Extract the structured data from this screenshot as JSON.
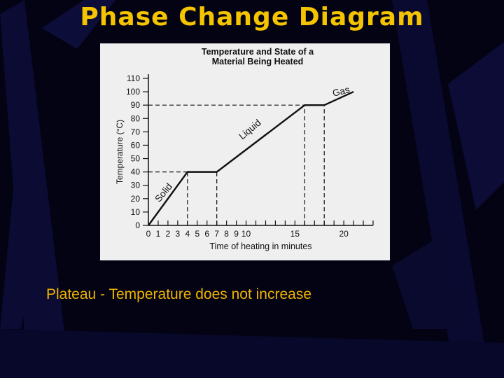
{
  "slide": {
    "title": "Phase Change Diagram",
    "caption": "Plateau - Temperature does not increase",
    "colors": {
      "title": "#f5c400",
      "caption": "#f0b400",
      "background": "#030314",
      "panel": "#efefef"
    }
  },
  "chart_data": {
    "type": "line",
    "title_lines": [
      "Temperature and State of a",
      "Material Being Heated"
    ],
    "xlabel": "Time of heating in minutes",
    "ylabel": "Temperature (°C)",
    "xlim": [
      0,
      23
    ],
    "ylim": [
      0,
      110
    ],
    "x_ticks": [
      0,
      1,
      2,
      3,
      4,
      5,
      6,
      7,
      8,
      9,
      10,
      11,
      12,
      13,
      14,
      15,
      16,
      17,
      18,
      19,
      20,
      21,
      22,
      23
    ],
    "x_tick_labels": [
      {
        "x": 0,
        "label": "0"
      },
      {
        "x": 1,
        "label": "1"
      },
      {
        "x": 2,
        "label": "2"
      },
      {
        "x": 3,
        "label": "3"
      },
      {
        "x": 4,
        "label": "4"
      },
      {
        "x": 5,
        "label": "5"
      },
      {
        "x": 6,
        "label": "6"
      },
      {
        "x": 7,
        "label": "7"
      },
      {
        "x": 8,
        "label": "8"
      },
      {
        "x": 9,
        "label": "9"
      },
      {
        "x": 10,
        "label": "10"
      },
      {
        "x": 15,
        "label": "15"
      },
      {
        "x": 20,
        "label": "20"
      }
    ],
    "y_ticks": [
      0,
      10,
      20,
      30,
      40,
      50,
      60,
      70,
      80,
      90,
      100,
      110
    ],
    "series": [
      {
        "x": [
          0,
          4,
          7,
          16,
          18,
          21
        ],
        "y": [
          0,
          40,
          40,
          90,
          90,
          100
        ]
      }
    ],
    "reference_lines": {
      "horizontal": [
        {
          "y": 40,
          "x_from": 0,
          "x_to": 4
        },
        {
          "y": 90,
          "x_from": 0,
          "x_to": 16
        }
      ],
      "vertical": [
        {
          "x": 4,
          "y_from": 0,
          "y_to": 40
        },
        {
          "x": 7,
          "y_from": 0,
          "y_to": 40
        },
        {
          "x": 16,
          "y_from": 0,
          "y_to": 90
        },
        {
          "x": 18,
          "y_from": 0,
          "y_to": 90
        }
      ]
    },
    "annotations": [
      {
        "text": "Solid",
        "x": 1.8,
        "y": 23,
        "angle": -50
      },
      {
        "text": "Liquid",
        "x": 10.6,
        "y": 70,
        "angle": -40
      },
      {
        "text": "Gas",
        "x": 19.8,
        "y": 98,
        "angle": -14
      }
    ],
    "grid": false,
    "legend": "none"
  }
}
